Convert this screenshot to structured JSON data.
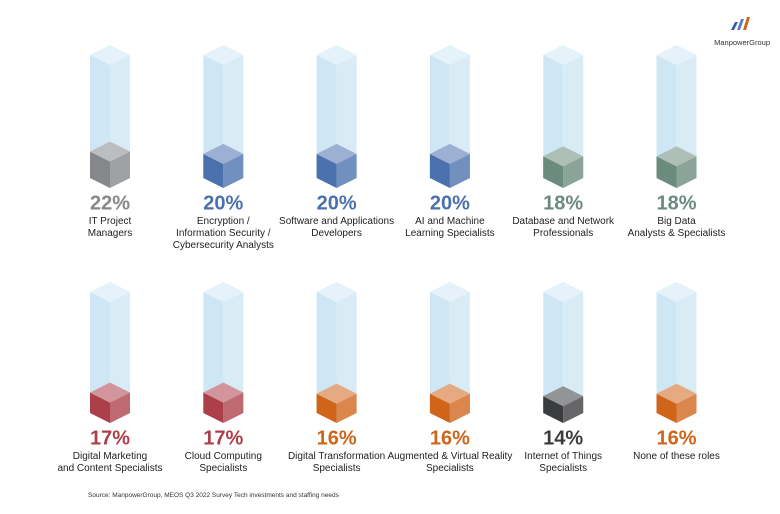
{
  "chart_data": {
    "type": "cube-bar",
    "brand": "ManpowerGroup",
    "categories": [
      "IT Project\nManagers",
      "Encryption /\nInformation Security /\nCybersecurity Analysts",
      "Software and Applications\nDevelopers",
      "AI and Machine\nLearning Specialists",
      "Database and Network\nProfessionals",
      "Big Data\nAnalysts & Specialists",
      "Digital Marketing\nand Content Specialists",
      "Cloud Computing\nSpecialists",
      "Digital Transformation\nSpecialists",
      "Augmented & Virtual Reality\nSpecialists",
      "Internet of Things\nSpecialists",
      "None of these roles"
    ],
    "values": [
      22,
      20,
      20,
      20,
      18,
      18,
      17,
      17,
      16,
      16,
      14,
      16
    ],
    "value_labels": [
      "22%",
      "20%",
      "20%",
      "20%",
      "18%",
      "18%",
      "17%",
      "17%",
      "16%",
      "16%",
      "14%",
      "16%"
    ],
    "colors": [
      "#86878a",
      "#4a70ad",
      "#4a70ad",
      "#4a70ad",
      "#6a8b7d",
      "#6a8b7d",
      "#ad3f4a",
      "#ad3f4a",
      "#d0651a",
      "#d0651a",
      "#3b3c3e",
      "#d0651a"
    ],
    "source": "Source: ManpowerGroup, MEOS Q3 2022 Survey Tech investments and staffing needs"
  }
}
